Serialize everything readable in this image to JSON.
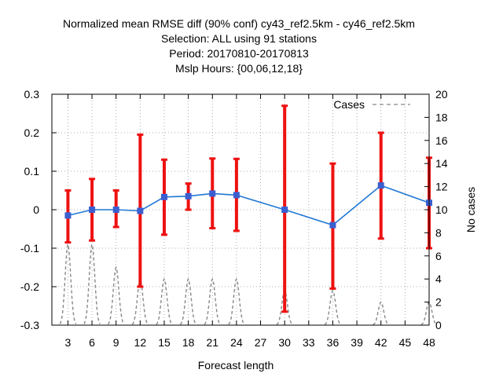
{
  "chart_data": {
    "type": "line",
    "title_lines": [
      "Normalized mean RMSE diff (90% conf) cy43_ref2.5km - cy46_ref2.5km",
      "Selection: ALL using    91 stations",
      "Period: 20170810-20170813",
      "Mslp   Hours: {00,06,12,18}"
    ],
    "xlabel": "Forecast length",
    "ylabel_right": "No cases",
    "xlim": [
      1,
      48
    ],
    "ylim": [
      -0.3,
      0.3
    ],
    "y2lim": [
      0,
      20
    ],
    "x_ticks": [
      3,
      6,
      9,
      12,
      15,
      18,
      21,
      24,
      27,
      30,
      33,
      36,
      39,
      42,
      45,
      48
    ],
    "y_ticks": [
      {
        "v": -0.3,
        "label": "-0.3"
      },
      {
        "v": -0.2,
        "label": "-0.2"
      },
      {
        "v": -0.1,
        "label": "-0.1"
      },
      {
        "v": 0,
        "label": "0"
      },
      {
        "v": 0.1,
        "label": "0.1"
      },
      {
        "v": 0.2,
        "label": "0.2"
      },
      {
        "v": 0.3,
        "label": "0.3"
      }
    ],
    "y2_ticks": [
      0,
      2,
      4,
      6,
      8,
      10,
      12,
      14,
      16,
      18,
      20
    ],
    "grid": true,
    "legend": {
      "label": "Cases",
      "position": "top-right"
    },
    "series": [
      {
        "name": "RMSE diff",
        "color": "#1f77d4",
        "marker_color": "#3a5fd0",
        "x": [
          3,
          6,
          9,
          12,
          15,
          18,
          21,
          24,
          30,
          36,
          42,
          48
        ],
        "y": [
          -0.015,
          0.0,
          0.0,
          -0.003,
          0.033,
          0.035,
          0.042,
          0.038,
          0.0,
          -0.04,
          0.063,
          0.018
        ]
      }
    ],
    "error_bars": {
      "color": "#ee1111",
      "x": [
        3,
        6,
        9,
        12,
        15,
        18,
        21,
        24,
        30,
        36,
        42,
        48
      ],
      "low": [
        -0.085,
        -0.08,
        -0.045,
        -0.2,
        -0.065,
        0.0,
        -0.048,
        -0.055,
        -0.265,
        -0.205,
        -0.075,
        -0.1
      ],
      "high": [
        0.05,
        0.08,
        0.05,
        0.195,
        0.13,
        0.068,
        0.133,
        0.132,
        0.27,
        0.12,
        0.2,
        0.135
      ]
    },
    "cases": {
      "name": "Cases",
      "color": "#888888",
      "x": [
        3,
        6,
        9,
        12,
        15,
        18,
        21,
        24,
        30,
        36,
        42,
        48
      ],
      "values": [
        7,
        7,
        5,
        4,
        4,
        4,
        4,
        4,
        3,
        3,
        2,
        2
      ]
    }
  }
}
